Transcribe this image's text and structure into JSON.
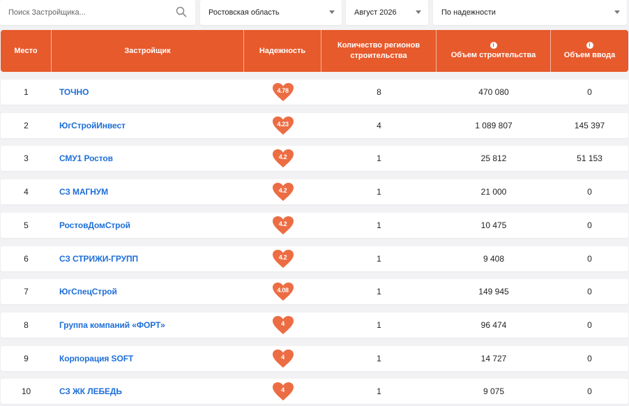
{
  "filters": {
    "search_placeholder": "Поиск Застройщика...",
    "region": "Ростовская область",
    "period": "Август 2026",
    "sort": "По надежности"
  },
  "table": {
    "headers": {
      "rank": "Место",
      "developer": "Застройщик",
      "reliability": "Надежность",
      "regions": "Количество регионов строительства",
      "volume": "Объем строительства",
      "commissioning": "Объем ввода"
    },
    "rows": [
      {
        "rank": "1",
        "developer": "ТОЧНО",
        "reliability": "4.78",
        "regions": "8",
        "volume": "470 080",
        "commissioning": "0"
      },
      {
        "rank": "2",
        "developer": "ЮгСтройИнвест",
        "reliability": "4.23",
        "regions": "4",
        "volume": "1 089 807",
        "commissioning": "145 397"
      },
      {
        "rank": "3",
        "developer": "СМУ1 Ростов",
        "reliability": "4.2",
        "regions": "1",
        "volume": "25 812",
        "commissioning": "51 153"
      },
      {
        "rank": "4",
        "developer": "СЗ МАГНУМ",
        "reliability": "4.2",
        "regions": "1",
        "volume": "21 000",
        "commissioning": "0"
      },
      {
        "rank": "5",
        "developer": "РостовДомСтрой",
        "reliability": "4.2",
        "regions": "1",
        "volume": "10 475",
        "commissioning": "0"
      },
      {
        "rank": "6",
        "developer": "СЗ СТРИЖИ-ГРУПП",
        "reliability": "4.2",
        "regions": "1",
        "volume": "9 408",
        "commissioning": "0"
      },
      {
        "rank": "7",
        "developer": "ЮгСпецСтрой",
        "reliability": "4.08",
        "regions": "1",
        "volume": "149 945",
        "commissioning": "0"
      },
      {
        "rank": "8",
        "developer": "Группа компаний «ФОРТ»",
        "reliability": "4",
        "regions": "1",
        "volume": "96 474",
        "commissioning": "0"
      },
      {
        "rank": "9",
        "developer": "Корпорация SOFT",
        "reliability": "4",
        "regions": "1",
        "volume": "14 727",
        "commissioning": "0"
      },
      {
        "rank": "10",
        "developer": "СЗ ЖК ЛЕБЕДЬ",
        "reliability": "4",
        "regions": "1",
        "volume": "9 075",
        "commissioning": "0"
      }
    ]
  },
  "colors": {
    "header_bg": "#e75a2c",
    "heart": "#ec6d43",
    "link": "#1e6ed8",
    "page_bg": "#f2f2f4"
  },
  "icons": {
    "search": "search-icon",
    "dropdown": "chevron-down-icon",
    "info": "info-icon",
    "reliability": "heart-icon"
  }
}
